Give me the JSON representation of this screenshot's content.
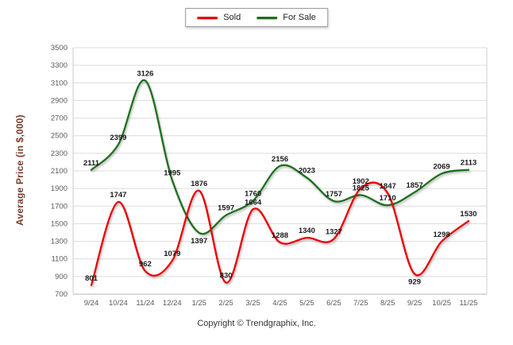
{
  "chart_data": {
    "type": "line",
    "ylabel": "Average Price (in $,000)",
    "ylim": [
      700,
      3500
    ],
    "ytick_step": 200,
    "grid": "horizontal",
    "legend_position": "top-center",
    "categories": [
      "9/24",
      "10/24",
      "11/24",
      "12/24",
      "1/25",
      "2/25",
      "3/25",
      "4/25",
      "5/25",
      "6/25",
      "7/25",
      "8/25",
      "9/25",
      "10/25",
      "11/25"
    ],
    "series": [
      {
        "name": "Sold",
        "color": "#e60000",
        "values": [
          801,
          1747,
          962,
          1079,
          1876,
          830,
          1664,
          1288,
          1340,
          1327,
          1902,
          1847,
          929,
          1298,
          1530
        ],
        "label_positions": [
          "above",
          "above",
          "above",
          "above",
          "above",
          "above",
          "above",
          "above",
          "above",
          "above",
          "above",
          "above",
          "below",
          "above",
          "above"
        ]
      },
      {
        "name": "For Sale",
        "color": "#1d6f1d",
        "values": [
          2111,
          2399,
          3126,
          1995,
          1397,
          1597,
          1760,
          2156,
          2023,
          1757,
          1825,
          1710,
          1857,
          2069,
          2113
        ],
        "label_positions": [
          "above",
          "above",
          "above",
          "above",
          "below",
          "above",
          "above",
          "above",
          "above",
          "above",
          "above",
          "above",
          "above",
          "above",
          "above"
        ]
      }
    ]
  },
  "footer": {
    "copyright": "Copyright © Trendgraphix, Inc."
  },
  "colors": {
    "axis_title": "#7a3c28",
    "tick_text": "#595959",
    "data_label": "#1a1a1a",
    "grid_line": "#dcdcdc",
    "axis_line": "#b5b5b5",
    "frame_line": "#cccccc",
    "background": "#ffffff"
  }
}
